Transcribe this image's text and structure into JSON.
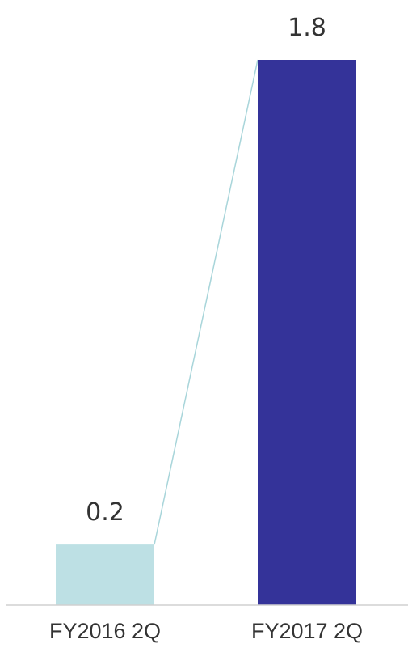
{
  "chart_data": {
    "type": "bar",
    "categories": [
      "FY2016 2Q",
      "FY2017 2Q"
    ],
    "values": [
      0.2,
      1.8
    ],
    "data_labels": [
      "0.2",
      "1.8"
    ],
    "colors": [
      "#bde0e4",
      "#343399"
    ],
    "connector_color": "#a8d5da",
    "axis_color": "#d0d0d0",
    "ylim": [
      0,
      1.8
    ],
    "title": "",
    "xlabel": "",
    "ylabel": "",
    "grid": false,
    "legend": "none"
  }
}
